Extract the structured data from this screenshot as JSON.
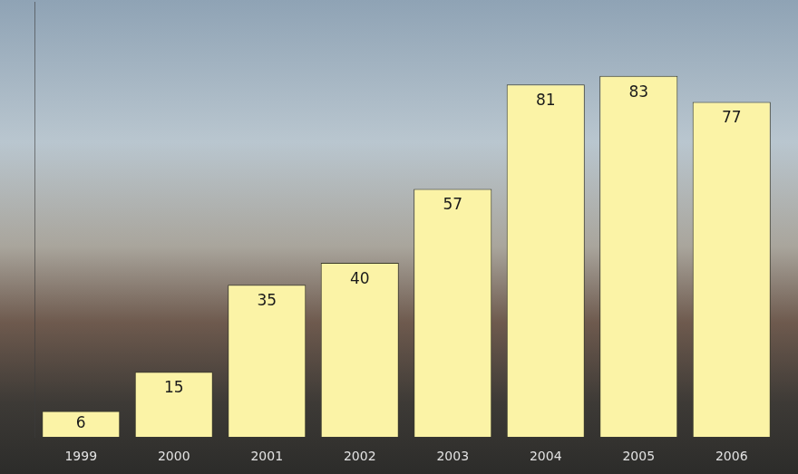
{
  "chart_data": {
    "type": "bar",
    "categories": [
      "1999",
      "2000",
      "2001",
      "2002",
      "2003",
      "2004",
      "2005",
      "2006"
    ],
    "values": [
      6,
      15,
      35,
      40,
      57,
      81,
      83,
      77
    ],
    "color": "#fbf3a6",
    "ylim": [
      0,
      100
    ],
    "grid": false,
    "data_labels": true,
    "tick_labels": "x"
  }
}
